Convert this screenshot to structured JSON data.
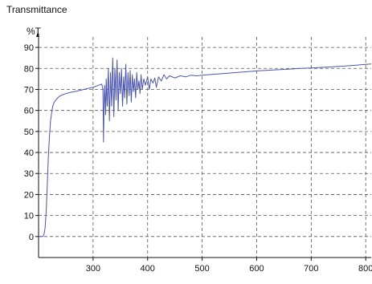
{
  "chart_data": {
    "type": "line",
    "title": "Transmittance",
    "xlabel": "",
    "ylabel": "%T",
    "xlim": [
      200,
      810
    ],
    "ylim": [
      -10,
      95
    ],
    "x_ticks": [
      "300",
      "400",
      "500",
      "600",
      "700",
      "800"
    ],
    "y_ticks": [
      "0",
      "10",
      "20",
      "30",
      "40",
      "50",
      "60",
      "70",
      "80",
      "90"
    ],
    "grid": true,
    "grid_style": "dashed",
    "line_color": "#4a55b0",
    "series": [
      {
        "x": [
          200,
          208,
          210,
          212,
          214,
          216,
          218,
          220,
          222,
          224,
          226,
          228,
          230,
          235,
          240,
          245,
          250,
          260,
          270,
          280,
          290,
          300,
          310,
          316,
          318,
          319,
          320,
          321,
          322,
          323,
          324,
          326,
          328,
          330,
          332,
          334,
          336,
          338,
          340,
          342,
          344,
          346,
          348,
          350,
          352,
          354,
          356,
          358,
          360,
          362,
          364,
          366,
          368,
          370,
          372,
          374,
          376,
          378,
          380,
          382,
          384,
          386,
          388,
          390,
          393,
          396,
          400,
          403,
          406,
          410,
          413,
          416,
          420,
          425,
          430,
          435,
          440,
          450,
          460,
          470,
          480,
          490,
          500,
          520,
          540,
          560,
          580,
          600,
          620,
          640,
          660,
          680,
          700,
          720,
          740,
          760,
          780,
          800,
          810
        ],
        "y": [
          0,
          0,
          1,
          4,
          12,
          25,
          38,
          48,
          55,
          59,
          62,
          63.5,
          64.5,
          66,
          67,
          67.5,
          68,
          68.7,
          69.2,
          69.8,
          70.5,
          71,
          72,
          72.5,
          70,
          45,
          60,
          72,
          65,
          58,
          75,
          62,
          80,
          55,
          78,
          62,
          85,
          57,
          80,
          65,
          84,
          60,
          78,
          68,
          80,
          62,
          76,
          66,
          82,
          63,
          78,
          67,
          79,
          64,
          77,
          69,
          75,
          66,
          78,
          70,
          74,
          68,
          77,
          70,
          75,
          72,
          76,
          70,
          75,
          73,
          75.5,
          71,
          76,
          74,
          77,
          75,
          76.5,
          75.5,
          76.5,
          76,
          76.8,
          76.5,
          76.8,
          77.2,
          77.6,
          78,
          78.4,
          78.8,
          79.1,
          79.4,
          79.7,
          80,
          80.2,
          80.5,
          80.8,
          81.1,
          81.5,
          81.9,
          82.1
        ]
      }
    ]
  }
}
